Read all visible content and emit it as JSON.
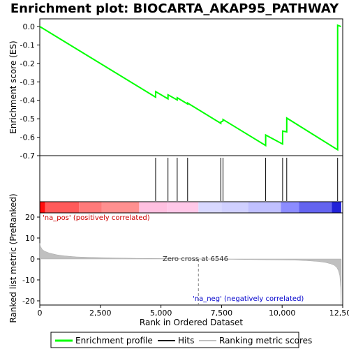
{
  "chart_data": {
    "type": "line",
    "title": "Enrichment plot: BIOCARTA_AKAP95_PATHWAY",
    "es_panel": {
      "ylabel": "Enrichment score (ES)",
      "ylim": [
        -0.7,
        0.0
      ],
      "yticks": [
        "0.0",
        "-0.1",
        "-0.2",
        "-0.3",
        "-0.4",
        "-0.5",
        "-0.6",
        "-0.7"
      ],
      "ytick_values": [
        0.0,
        -0.1,
        -0.2,
        -0.3,
        -0.4,
        -0.5,
        -0.6,
        -0.7
      ],
      "line_color": "#00ff00",
      "series": [
        {
          "name": "Enrichment profile",
          "x": [
            0,
            4780,
            4781,
            5290,
            5291,
            5670,
            5671,
            6100,
            6101,
            7470,
            7471,
            7560,
            7561,
            9320,
            9321,
            10020,
            10021,
            10190,
            10191,
            12290,
            12291,
            12430
          ],
          "y": [
            0.0,
            -0.383,
            -0.353,
            -0.392,
            -0.37,
            -0.398,
            -0.386,
            -0.42,
            -0.415,
            -0.525,
            -0.518,
            -0.512,
            -0.504,
            -0.645,
            -0.588,
            -0.637,
            -0.567,
            -0.571,
            -0.496,
            -0.668,
            0.007,
            0.0
          ]
        }
      ]
    },
    "hits": {
      "name": "Hits",
      "x": [
        4780,
        5290,
        5670,
        6100,
        7470,
        7560,
        9320,
        10020,
        10190,
        12290
      ]
    },
    "metric_panel": {
      "ylabel": "Ranked list metric (PreRanked)",
      "xlabel": "Rank in Ordered Dataset",
      "xlim": [
        0,
        12500
      ],
      "ylim": [
        -22,
        22
      ],
      "xticks": [
        "0",
        "2,500",
        "5,000",
        "7,500",
        "10,000",
        "12,500"
      ],
      "xtick_values": [
        0,
        2500,
        5000,
        7500,
        10000,
        12500
      ],
      "yticks": [
        "20",
        "10",
        "0",
        "-10",
        "-20"
      ],
      "ytick_values": [
        20,
        10,
        0,
        -10,
        -20
      ],
      "series_name": "Ranking metric scores",
      "profile": {
        "x": [
          0,
          30,
          100,
          200,
          400,
          700,
          1000,
          1500,
          2000,
          3000,
          4000,
          5000,
          6000,
          6546,
          7500,
          8500,
          9500,
          10500,
          11000,
          11500,
          11800,
          12000,
          12150,
          12250,
          12320,
          12380,
          12420,
          12440
        ],
        "y": [
          7.5,
          6.0,
          4.6,
          3.7,
          2.8,
          2.0,
          1.5,
          1.0,
          0.8,
          0.5,
          0.3,
          0.2,
          0.1,
          0.0,
          -0.1,
          -0.25,
          -0.4,
          -0.55,
          -0.8,
          -1.2,
          -1.7,
          -2.3,
          -3.0,
          -4.0,
          -5.5,
          -8.0,
          -14.0,
          -21.5
        ]
      },
      "zero_cross_label": "Zero cross at 6546",
      "zero_cross": 6546,
      "pos_label": "'na_pos' (positively correlated)",
      "neg_label": "'na_neg' (negatively correlated)",
      "pos_color": "#ff0000",
      "neg_color": "#0000ff"
    },
    "heat_bar": {
      "segments": [
        {
          "from": 0,
          "to": 220,
          "color": "#ff0d0d"
        },
        {
          "from": 220,
          "to": 1620,
          "color": "#ff5a5a"
        },
        {
          "from": 1620,
          "to": 2550,
          "color": "#ff7a7a"
        },
        {
          "from": 2550,
          "to": 4100,
          "color": "#ff9090"
        },
        {
          "from": 4100,
          "to": 5250,
          "color": "#ffc0e0"
        },
        {
          "from": 5250,
          "to": 6546,
          "color": "#ffc8e8"
        },
        {
          "from": 6546,
          "to": 7500,
          "color": "#d8d8ff"
        },
        {
          "from": 7500,
          "to": 8600,
          "color": "#d0d0ff"
        },
        {
          "from": 8600,
          "to": 9950,
          "color": "#c0c0ff"
        },
        {
          "from": 9950,
          "to": 10700,
          "color": "#8c8cff"
        },
        {
          "from": 10700,
          "to": 12050,
          "color": "#6464f0"
        },
        {
          "from": 12050,
          "to": 12440,
          "color": "#2222d8"
        }
      ]
    },
    "legend": {
      "placement": "bottom",
      "items": [
        {
          "label": "Enrichment profile",
          "color": "#00ff00",
          "kind": "line"
        },
        {
          "label": "Hits",
          "color": "#000000",
          "kind": "line"
        },
        {
          "label": "Ranking metric scores",
          "color": "#c0c0c0",
          "kind": "line"
        }
      ]
    }
  }
}
